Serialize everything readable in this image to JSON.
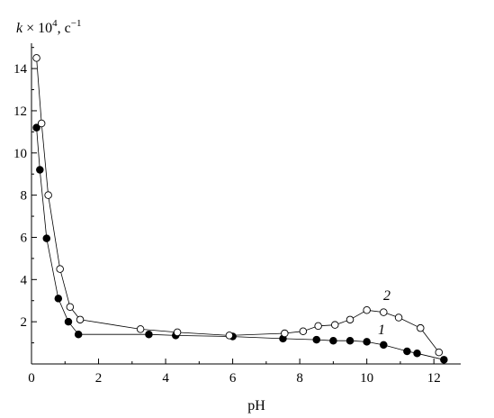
{
  "chart_data": {
    "type": "line",
    "ylabel_parts": {
      "var": "k",
      "mid": " × 10",
      "exp": "4",
      "unit": ", c",
      "unit_exp": "−1"
    },
    "xlabel": "pH",
    "xlim": [
      0,
      12.8
    ],
    "ylim": [
      0,
      15.2
    ],
    "xticks": [
      0,
      2,
      4,
      6,
      8,
      10,
      12
    ],
    "yticks": [
      2,
      4,
      6,
      8,
      10,
      12,
      14
    ],
    "grid": false,
    "series": [
      {
        "name": "1",
        "marker": "filled-circle",
        "x": [
          0.15,
          0.25,
          0.45,
          0.8,
          1.1,
          1.4,
          3.5,
          4.3,
          6.0,
          7.5,
          8.5,
          9.0,
          9.5,
          10.0,
          10.5,
          11.2,
          11.5,
          12.3
        ],
        "y": [
          11.2,
          9.2,
          5.95,
          3.1,
          2.0,
          1.4,
          1.4,
          1.35,
          1.3,
          1.2,
          1.15,
          1.1,
          1.1,
          1.05,
          0.9,
          0.6,
          0.5,
          0.2
        ]
      },
      {
        "name": "2",
        "marker": "open-circle",
        "x": [
          0.15,
          0.3,
          0.5,
          0.85,
          1.15,
          1.45,
          3.25,
          4.35,
          5.9,
          7.55,
          8.1,
          8.55,
          9.05,
          9.5,
          10.0,
          10.5,
          10.95,
          11.6,
          12.15
        ],
        "y": [
          14.5,
          11.4,
          8.0,
          4.5,
          2.7,
          2.1,
          1.65,
          1.5,
          1.35,
          1.45,
          1.55,
          1.8,
          1.85,
          2.1,
          2.55,
          2.45,
          2.2,
          1.7,
          0.55
        ]
      }
    ]
  }
}
